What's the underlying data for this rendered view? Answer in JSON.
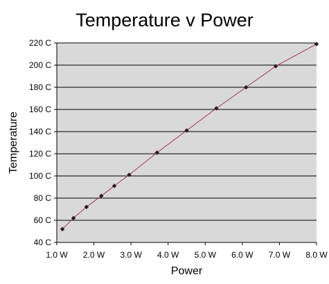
{
  "chart_data": {
    "type": "line",
    "title": "Temperature v Power",
    "xlabel": "Power",
    "ylabel": "Temperature",
    "xlim": [
      1.0,
      8.0
    ],
    "ylim": [
      40,
      220
    ],
    "x_ticks": [
      1.0,
      2.0,
      3.0,
      4.0,
      5.0,
      6.0,
      7.0,
      8.0
    ],
    "x_tick_labels": [
      "1.0 W",
      "2.0 W",
      "3.0 W",
      "4.0 W",
      "5.0 W",
      "6.0 W",
      "7.0 W",
      "8.0 W"
    ],
    "y_ticks": [
      40,
      60,
      80,
      100,
      120,
      140,
      160,
      180,
      200,
      220
    ],
    "y_tick_labels": [
      "40 C",
      "60 C",
      "80 C",
      "100 C",
      "120 C",
      "140 C",
      "160 C",
      "180 C",
      "200 C",
      "220 C"
    ],
    "grid": "horizontal",
    "legend": "none",
    "series": [
      {
        "x": [
          1.15,
          1.45,
          1.8,
          2.2,
          2.55,
          2.95,
          3.7,
          4.5,
          5.3,
          6.1,
          6.9,
          8.0
        ],
        "y": [
          52,
          62,
          72,
          82,
          91,
          101,
          121,
          141,
          161,
          180,
          199,
          219
        ]
      }
    ],
    "colors": {
      "plot_background": "#d9d9d9",
      "gridline": "#000000",
      "line": "#993366",
      "marker": "#2b1b22"
    }
  }
}
